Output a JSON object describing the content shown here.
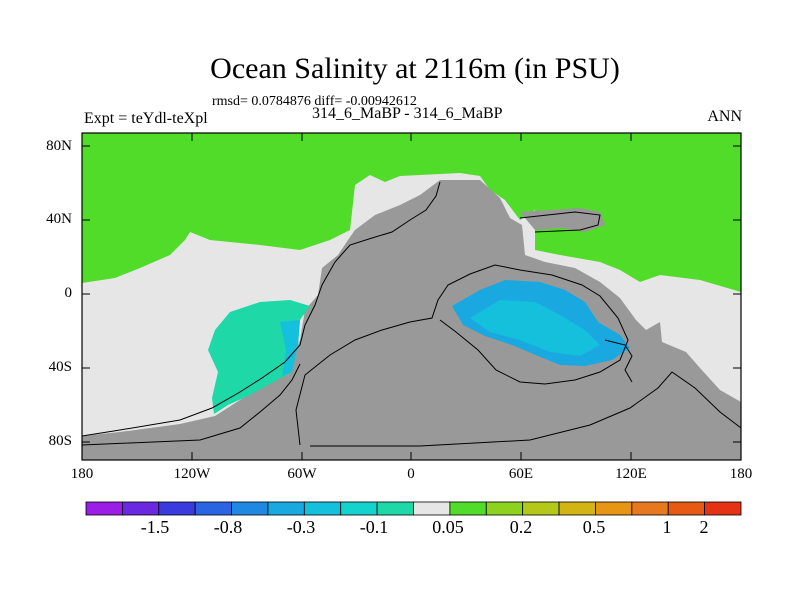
{
  "title": "Ocean Salinity at 2116m (in PSU)",
  "stats": "rmsd= 0.0784876 diff= -0.00942612",
  "left_label": "Expt = teYdl-teXpl",
  "center_label": "314_6_MaBP - 314_6_MaBP",
  "right_label": "ANN",
  "map": {
    "lat_ticks": [
      "80N",
      "40N",
      "0",
      "40S",
      "80S"
    ],
    "lon_ticks": [
      "180",
      "120W",
      "60W",
      "0",
      "60E",
      "120E",
      "180"
    ],
    "land_color": "#999999",
    "missing_color": "#e6e6e6",
    "border_color": "#000000"
  },
  "colorbar": {
    "colors": [
      "#9a1ee6",
      "#6a28e0",
      "#3a3ade",
      "#2a64e2",
      "#1e88e2",
      "#1aa8e0",
      "#14c0dc",
      "#14d2cc",
      "#1ed8a8",
      "#e6e6e6",
      "#50dc28",
      "#8cd21e",
      "#b4c81a",
      "#d2b414",
      "#e69614",
      "#e6781e",
      "#e65a14",
      "#e63214"
    ],
    "labels": [
      "-1.5",
      "-0.8",
      "-0.3",
      "-0.1",
      "0.05",
      "0.2",
      "0.5",
      "1",
      "2"
    ]
  }
}
